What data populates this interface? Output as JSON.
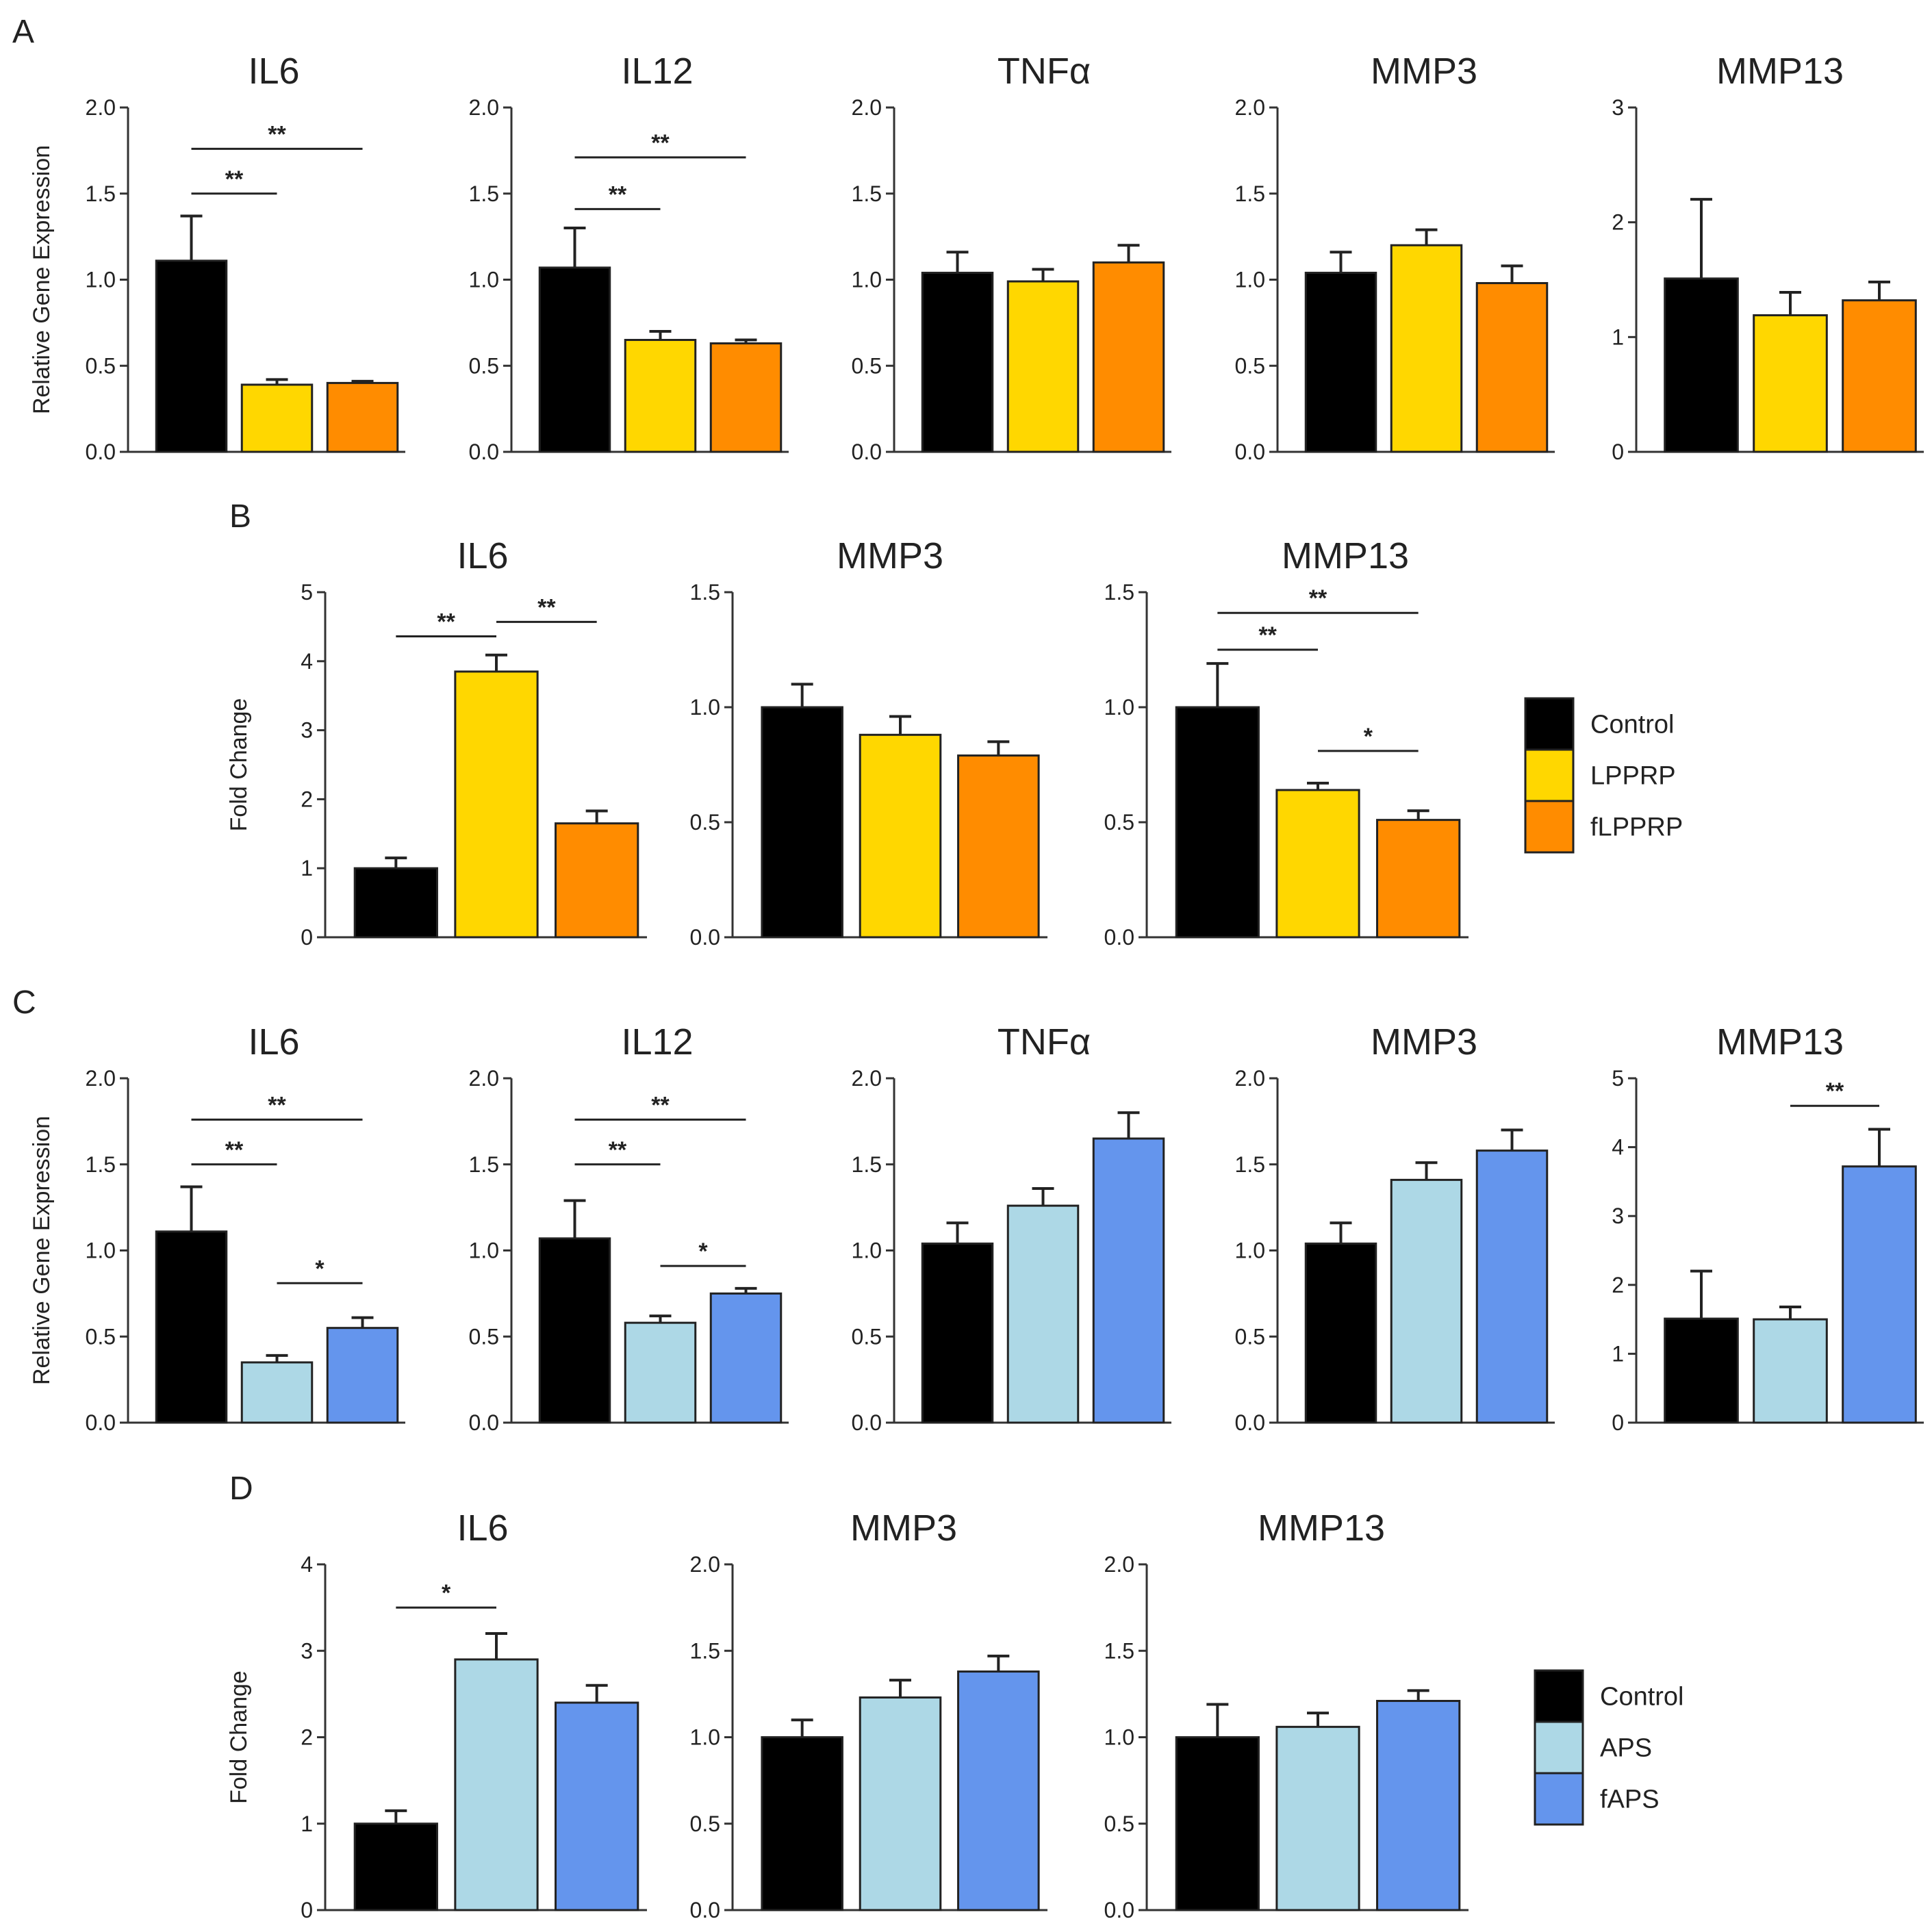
{
  "colors": {
    "control": "#000000",
    "lpprp": "#FFD700",
    "flpprp": "#FF8C00",
    "aps": "#ADD8E6",
    "faps": "#6495ED"
  },
  "legends": [
    {
      "entries": [
        {
          "label": "Control",
          "color": "#000000"
        },
        {
          "label": "LPPRP",
          "color": "#FFD700"
        },
        {
          "label": "fLPPRP",
          "color": "#FF8C00"
        }
      ]
    },
    {
      "entries": [
        {
          "label": "Control",
          "color": "#000000"
        },
        {
          "label": "APS",
          "color": "#ADD8E6"
        },
        {
          "label": "fAPS",
          "color": "#6495ED"
        }
      ]
    }
  ],
  "panel_labels": [
    "A",
    "B",
    "C",
    "D"
  ],
  "chart_data": [
    {
      "panel": "A",
      "type": "bar",
      "title": "IL6",
      "ylabel": "Relative Gene Expression",
      "ylim": [
        0,
        2
      ],
      "yticks": [
        "0.0",
        "0.5",
        "1.0",
        "1.5",
        "2.0"
      ],
      "categories": [
        "Control",
        "LPPRP",
        "fLPPRP"
      ],
      "values": [
        1.11,
        0.39,
        0.4
      ],
      "errors": [
        0.26,
        0.03,
        0.01
      ],
      "colors": [
        "#000000",
        "#FFD700",
        "#FF8C00"
      ],
      "significance": [
        {
          "from": 0,
          "to": 1,
          "label": "**",
          "y": 1.5
        },
        {
          "from": 0,
          "to": 2,
          "label": "**",
          "y": 1.76
        }
      ]
    },
    {
      "panel": "A",
      "type": "bar",
      "title": "IL12",
      "ylabel": "",
      "ylim": [
        0,
        2
      ],
      "yticks": [
        "0.0",
        "0.5",
        "1.0",
        "1.5",
        "2.0"
      ],
      "categories": [
        "Control",
        "LPPRP",
        "fLPPRP"
      ],
      "values": [
        1.07,
        0.65,
        0.63
      ],
      "errors": [
        0.23,
        0.05,
        0.02
      ],
      "colors": [
        "#000000",
        "#FFD700",
        "#FF8C00"
      ],
      "significance": [
        {
          "from": 0,
          "to": 1,
          "label": "**",
          "y": 1.41
        },
        {
          "from": 0,
          "to": 2,
          "label": "**",
          "y": 1.71
        }
      ]
    },
    {
      "panel": "A",
      "type": "bar",
      "title": "TNFα",
      "ylabel": "",
      "ylim": [
        0,
        2
      ],
      "yticks": [
        "0.0",
        "0.5",
        "1.0",
        "1.5",
        "2.0"
      ],
      "categories": [
        "Control",
        "LPPRP",
        "fLPPRP"
      ],
      "values": [
        1.04,
        0.99,
        1.1
      ],
      "errors": [
        0.12,
        0.07,
        0.1
      ],
      "colors": [
        "#000000",
        "#FFD700",
        "#FF8C00"
      ],
      "significance": []
    },
    {
      "panel": "A",
      "type": "bar",
      "title": "MMP3",
      "ylabel": "",
      "ylim": [
        0,
        2
      ],
      "yticks": [
        "0.0",
        "0.5",
        "1.0",
        "1.5",
        "2.0"
      ],
      "categories": [
        "Control",
        "LPPRP",
        "fLPPRP"
      ],
      "values": [
        1.04,
        1.2,
        0.98
      ],
      "errors": [
        0.12,
        0.09,
        0.1
      ],
      "colors": [
        "#000000",
        "#FFD700",
        "#FF8C00"
      ],
      "significance": []
    },
    {
      "panel": "A",
      "type": "bar",
      "title": "MMP13",
      "ylabel": "",
      "ylim": [
        0,
        3
      ],
      "yticks": [
        "0",
        "1",
        "2",
        "3"
      ],
      "categories": [
        "Control",
        "LPPRP",
        "fLPPRP"
      ],
      "values": [
        1.51,
        1.19,
        1.32
      ],
      "errors": [
        0.69,
        0.2,
        0.16
      ],
      "colors": [
        "#000000",
        "#FFD700",
        "#FF8C00"
      ],
      "significance": []
    },
    {
      "panel": "B",
      "type": "bar",
      "title": "IL6",
      "ylabel": "Fold Change",
      "ylim": [
        0,
        5
      ],
      "yticks": [
        "0",
        "1",
        "2",
        "3",
        "4",
        "5"
      ],
      "categories": [
        "Control",
        "LPPRP",
        "fLPPRP"
      ],
      "values": [
        1.0,
        3.85,
        1.65
      ],
      "errors": [
        0.15,
        0.24,
        0.18
      ],
      "colors": [
        "#000000",
        "#FFD700",
        "#FF8C00"
      ],
      "significance": [
        {
          "from": 0,
          "to": 1,
          "label": "**",
          "y": 4.36
        },
        {
          "from": 1,
          "to": 2,
          "label": "**",
          "y": 4.57
        }
      ]
    },
    {
      "panel": "B",
      "type": "bar",
      "title": "MMP3",
      "ylabel": "",
      "ylim": [
        0,
        1.5
      ],
      "yticks": [
        "0.0",
        "0.5",
        "1.0",
        "1.5"
      ],
      "categories": [
        "Control",
        "LPPRP",
        "fLPPRP"
      ],
      "values": [
        1.0,
        0.88,
        0.79
      ],
      "errors": [
        0.1,
        0.08,
        0.06
      ],
      "colors": [
        "#000000",
        "#FFD700",
        "#FF8C00"
      ],
      "significance": []
    },
    {
      "panel": "B",
      "type": "bar",
      "title": "MMP13",
      "ylabel": "",
      "ylim": [
        0,
        1.5
      ],
      "yticks": [
        "0.0",
        "0.5",
        "1.0",
        "1.5"
      ],
      "categories": [
        "Control",
        "LPPRP",
        "fLPPRP"
      ],
      "values": [
        1.0,
        0.64,
        0.51
      ],
      "errors": [
        0.19,
        0.03,
        0.04
      ],
      "colors": [
        "#000000",
        "#FFD700",
        "#FF8C00"
      ],
      "significance": [
        {
          "from": 0,
          "to": 1,
          "label": "**",
          "y": 1.25
        },
        {
          "from": 0,
          "to": 2,
          "label": "**",
          "y": 1.41
        },
        {
          "from": 1,
          "to": 2,
          "label": "*",
          "y": 0.81
        }
      ]
    },
    {
      "panel": "C",
      "type": "bar",
      "title": "IL6",
      "ylabel": "Relative Gene Expression",
      "ylim": [
        0,
        2
      ],
      "yticks": [
        "0.0",
        "0.5",
        "1.0",
        "1.5",
        "2.0"
      ],
      "categories": [
        "Control",
        "APS",
        "fAPS"
      ],
      "values": [
        1.11,
        0.35,
        0.55
      ],
      "errors": [
        0.26,
        0.04,
        0.06
      ],
      "colors": [
        "#000000",
        "#ADD8E6",
        "#6495ED"
      ],
      "significance": [
        {
          "from": 0,
          "to": 1,
          "label": "**",
          "y": 1.5
        },
        {
          "from": 0,
          "to": 2,
          "label": "**",
          "y": 1.76
        },
        {
          "from": 1,
          "to": 2,
          "label": "*",
          "y": 0.81
        }
      ]
    },
    {
      "panel": "C",
      "type": "bar",
      "title": "IL12",
      "ylabel": "",
      "ylim": [
        0,
        2
      ],
      "yticks": [
        "0.0",
        "0.5",
        "1.0",
        "1.5",
        "2.0"
      ],
      "categories": [
        "Control",
        "APS",
        "fAPS"
      ],
      "values": [
        1.07,
        0.58,
        0.75
      ],
      "errors": [
        0.22,
        0.04,
        0.03
      ],
      "colors": [
        "#000000",
        "#ADD8E6",
        "#6495ED"
      ],
      "significance": [
        {
          "from": 0,
          "to": 1,
          "label": "**",
          "y": 1.5
        },
        {
          "from": 0,
          "to": 2,
          "label": "**",
          "y": 1.76
        },
        {
          "from": 1,
          "to": 2,
          "label": "*",
          "y": 0.91
        }
      ]
    },
    {
      "panel": "C",
      "type": "bar",
      "title": "TNFα",
      "ylabel": "",
      "ylim": [
        0,
        2
      ],
      "yticks": [
        "0.0",
        "0.5",
        "1.0",
        "1.5",
        "2.0"
      ],
      "categories": [
        "Control",
        "APS",
        "fAPS"
      ],
      "values": [
        1.04,
        1.26,
        1.65
      ],
      "errors": [
        0.12,
        0.1,
        0.15
      ],
      "colors": [
        "#000000",
        "#ADD8E6",
        "#6495ED"
      ],
      "significance": []
    },
    {
      "panel": "C",
      "type": "bar",
      "title": "MMP3",
      "ylabel": "",
      "ylim": [
        0,
        2
      ],
      "yticks": [
        "0.0",
        "0.5",
        "1.0",
        "1.5",
        "2.0"
      ],
      "categories": [
        "Control",
        "APS",
        "fAPS"
      ],
      "values": [
        1.04,
        1.41,
        1.58
      ],
      "errors": [
        0.12,
        0.1,
        0.12
      ],
      "colors": [
        "#000000",
        "#ADD8E6",
        "#6495ED"
      ],
      "significance": []
    },
    {
      "panel": "C",
      "type": "bar",
      "title": "MMP13",
      "ylabel": "",
      "ylim": [
        0,
        5
      ],
      "yticks": [
        "0",
        "1",
        "2",
        "3",
        "4",
        "5"
      ],
      "categories": [
        "Control",
        "APS",
        "fAPS"
      ],
      "values": [
        1.51,
        1.5,
        3.72
      ],
      "errors": [
        0.69,
        0.18,
        0.54
      ],
      "colors": [
        "#000000",
        "#ADD8E6",
        "#6495ED"
      ],
      "significance": [
        {
          "from": 1,
          "to": 2,
          "label": "**",
          "y": 4.6
        }
      ]
    },
    {
      "panel": "D",
      "type": "bar",
      "title": "IL6",
      "ylabel": "Fold Change",
      "ylim": [
        0,
        4
      ],
      "yticks": [
        "0",
        "1",
        "2",
        "3",
        "4"
      ],
      "categories": [
        "Control",
        "APS",
        "fAPS"
      ],
      "values": [
        1.0,
        2.9,
        2.4
      ],
      "errors": [
        0.15,
        0.3,
        0.2
      ],
      "colors": [
        "#000000",
        "#ADD8E6",
        "#6495ED"
      ],
      "significance": [
        {
          "from": 0,
          "to": 1,
          "label": "*",
          "y": 3.5
        }
      ]
    },
    {
      "panel": "D",
      "type": "bar",
      "title": "MMP3",
      "ylabel": "",
      "ylim": [
        0,
        2
      ],
      "yticks": [
        "0.0",
        "0.5",
        "1.0",
        "1.5",
        "2.0"
      ],
      "categories": [
        "Control",
        "APS",
        "fAPS"
      ],
      "values": [
        1.0,
        1.23,
        1.38
      ],
      "errors": [
        0.1,
        0.1,
        0.09
      ],
      "colors": [
        "#000000",
        "#ADD8E6",
        "#6495ED"
      ],
      "significance": []
    },
    {
      "panel": "D",
      "type": "bar",
      "title": "MMP13",
      "ylabel": "",
      "ylim": [
        0,
        2
      ],
      "yticks": [
        "0.0",
        "0.5",
        "1.0",
        "1.5",
        "2.0"
      ],
      "categories": [
        "Control",
        "APS",
        "fAPS"
      ],
      "values": [
        1.0,
        1.06,
        1.21
      ],
      "errors": [
        0.19,
        0.08,
        0.06
      ],
      "colors": [
        "#000000",
        "#ADD8E6",
        "#6495ED"
      ],
      "significance": []
    }
  ]
}
